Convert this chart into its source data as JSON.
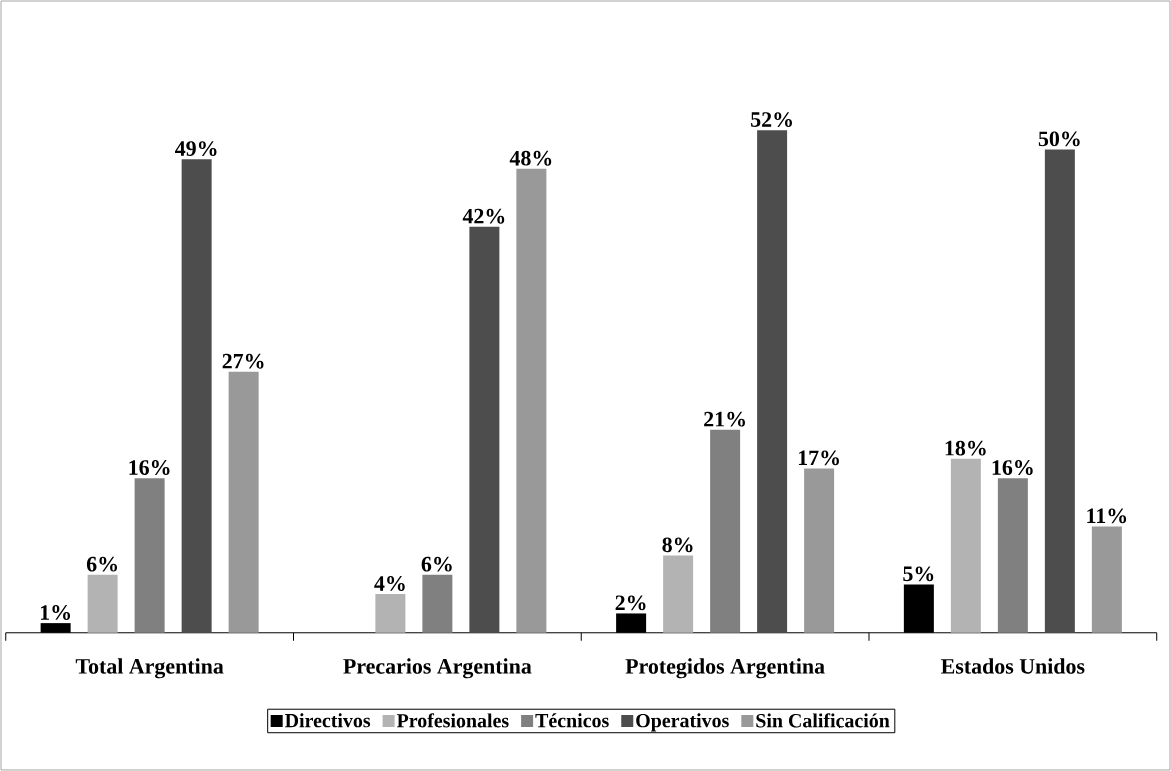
{
  "chart_data": {
    "type": "bar",
    "categories": [
      "Total Argentina",
      "Precarios Argentina",
      "Protegidos Argentina",
      "Estados Unidos"
    ],
    "series": [
      {
        "name": "Directivos",
        "color": "#000000",
        "values": [
          1,
          null,
          2,
          5
        ],
        "value_labels": [
          "1%",
          null,
          "2%",
          "5%"
        ]
      },
      {
        "name": "Profesionales",
        "color": "#b3b3b3",
        "values": [
          6,
          4,
          8,
          18
        ],
        "value_labels": [
          "6%",
          "4%",
          "8%",
          "18%"
        ]
      },
      {
        "name": "Técnicos",
        "color": "#808080",
        "values": [
          16,
          6,
          21,
          16
        ],
        "value_labels": [
          "16%",
          "6%",
          "21%",
          "16%"
        ]
      },
      {
        "name": "Operativos",
        "color": "#4d4d4d",
        "values": [
          49,
          42,
          52,
          50
        ],
        "value_labels": [
          "49%",
          "42%",
          "52%",
          "50%"
        ]
      },
      {
        "name": "Sin Calificación",
        "color": "#999999",
        "values": [
          27,
          48,
          17,
          11
        ],
        "value_labels": [
          "27%",
          "48%",
          "17%",
          "11%"
        ]
      }
    ],
    "legend": "bottom"
  }
}
